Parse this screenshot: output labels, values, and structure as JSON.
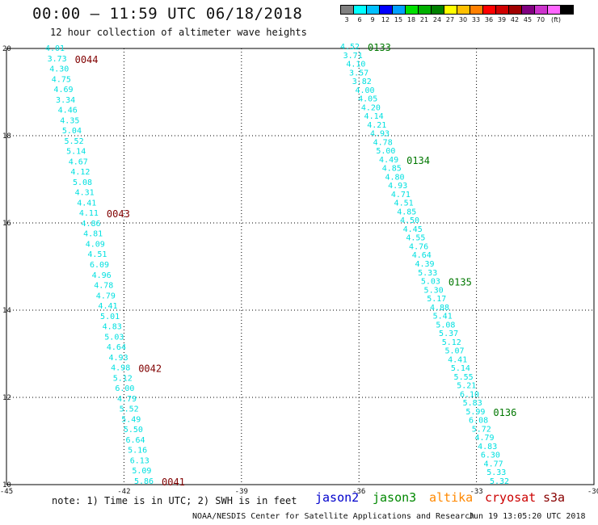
{
  "header": {
    "title": "00:00 – 11:59 UTC 06/18/2018",
    "subtitle": "12 hour collection of altimeter wave heights"
  },
  "legend": {
    "colors": [
      "#808080",
      "#00ffff",
      "#00c0ff",
      "#0000ff",
      "#00a0ff",
      "#00e000",
      "#00b000",
      "#008000",
      "#ffff00",
      "#ffc000",
      "#ff8000",
      "#ff0000",
      "#d00000",
      "#a00000",
      "#800080",
      "#cc33cc",
      "#ff66ff",
      "#000000"
    ],
    "labels": [
      "3",
      "6",
      "9",
      "12",
      "15",
      "18",
      "21",
      "24",
      "27",
      "30",
      "33",
      "36",
      "39",
      "42",
      "45",
      "70"
    ],
    "unit": "(ft)"
  },
  "axes": {
    "x_ticks": [
      "-45",
      "-42",
      "-39",
      "-36",
      "-33",
      "-30"
    ],
    "y_ticks": [
      "20",
      "18",
      "16",
      "14",
      "12",
      "10"
    ]
  },
  "tracks": [
    {
      "satellite": "cryosat",
      "color": "#00e0e0",
      "label_color": "#800000",
      "values": [
        "4.01",
        "3.73",
        "4.30",
        "4.75",
        "4.69",
        "3.34",
        "4.46",
        "4.35",
        "5.04",
        "5.52",
        "5.14",
        "4.67",
        "4.12",
        "5.08",
        "4.31",
        "4.41",
        "4.11",
        "4.86",
        "4.81",
        "4.09",
        "4.51",
        "6.09",
        "4.96",
        "4.78",
        "4.79",
        "4.41",
        "5.01",
        "4.83",
        "5.03",
        "4.64",
        "4.93",
        "4.98",
        "5.12",
        "6.00",
        "4.79",
        "5.52",
        "5.49",
        "5.50",
        "6.64",
        "5.16",
        "6.13",
        "5.09",
        "5.86"
      ],
      "times": [
        {
          "text": "0044",
          "index": 1
        },
        {
          "text": "0043",
          "index": 16
        },
        {
          "text": "0042",
          "index": 31
        },
        {
          "text": "0041",
          "index": 42
        }
      ]
    },
    {
      "satellite": "jason3",
      "color": "#00e0e0",
      "label_color": "#007700",
      "values": [
        "4.52",
        "3.71",
        "4.10",
        "3.57",
        "3.82",
        "4.00",
        "4.05",
        "4.20",
        "4.14",
        "4.21",
        "4.93",
        "4.78",
        "5.00",
        "4.49",
        "4.85",
        "4.80",
        "4.93",
        "4.71",
        "4.51",
        "4.85",
        "4.50",
        "4.45",
        "4.55",
        "4.76",
        "4.64",
        "4.39",
        "5.33",
        "5.03",
        "5.30",
        "5.17",
        "4.88",
        "5.41",
        "5.08",
        "5.37",
        "5.12",
        "5.07",
        "4.41",
        "5.14",
        "5.55",
        "5.21",
        "6.10",
        "5.83",
        "5.99",
        "6.08",
        "5.72",
        "4.79",
        "4.83",
        "6.30",
        "4.77",
        "5.33",
        "5.32"
      ],
      "times": [
        {
          "text": "0133",
          "index": 0
        },
        {
          "text": "0134",
          "index": 13
        },
        {
          "text": "0135",
          "index": 27
        },
        {
          "text": "0136",
          "index": 42
        }
      ]
    }
  ],
  "footer": {
    "note": "note: 1) Time is in UTC; 2) SWH is in feet",
    "satellites": [
      {
        "name": "jason2",
        "color": "#0000cc"
      },
      {
        "name": "jason3",
        "color": "#008800"
      },
      {
        "name": "altika",
        "color": "#ff8800"
      },
      {
        "name": "cryosat",
        "color": "#cc0000"
      },
      {
        "name": "s3a",
        "color": "#880000"
      }
    ],
    "credit": "NOAA/NESDIS Center for Satellite Applications and Research",
    "timestamp": "Jun 19 13:05:20 UTC 2018"
  }
}
